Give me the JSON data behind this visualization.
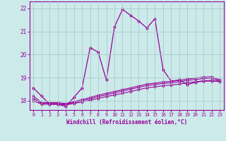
{
  "xlabel": "Windchill (Refroidissement éolien,°C)",
  "background_color": "#cceaea",
  "grid_color": "#aacccc",
  "line_color": "#990099",
  "xlim_min": -0.5,
  "xlim_max": 23.5,
  "ylim_min": 17.6,
  "ylim_max": 22.3,
  "yticks": [
    18,
    19,
    20,
    21,
    22
  ],
  "xticks": [
    0,
    1,
    2,
    3,
    4,
    5,
    6,
    7,
    8,
    9,
    10,
    11,
    12,
    13,
    14,
    15,
    16,
    17,
    18,
    19,
    20,
    21,
    22,
    23
  ],
  "series1_x": [
    0,
    1,
    2,
    3,
    4,
    5,
    6,
    7,
    8,
    9,
    10,
    11,
    12,
    13,
    14,
    15,
    16,
    17,
    18,
    19,
    20,
    21,
    22,
    23
  ],
  "series1_y": [
    18.55,
    18.2,
    17.85,
    17.85,
    17.75,
    18.15,
    18.55,
    20.3,
    20.1,
    18.9,
    21.2,
    21.95,
    21.7,
    21.45,
    21.15,
    21.55,
    19.35,
    18.85,
    18.9,
    18.7,
    18.8,
    18.85,
    18.85,
    18.85
  ],
  "series2_x": [
    0,
    1,
    2,
    3,
    4,
    5,
    6,
    7,
    8,
    9,
    10,
    11,
    12,
    13,
    14,
    15,
    16,
    17,
    18,
    19,
    20,
    21,
    22,
    23
  ],
  "series2_y": [
    18.0,
    17.85,
    17.85,
    17.85,
    17.82,
    17.88,
    17.95,
    18.02,
    18.1,
    18.18,
    18.25,
    18.32,
    18.4,
    18.48,
    18.56,
    18.6,
    18.65,
    18.68,
    18.72,
    18.78,
    18.82,
    18.86,
    18.88,
    18.82
  ],
  "series3_x": [
    0,
    1,
    2,
    3,
    4,
    5,
    6,
    7,
    8,
    9,
    10,
    11,
    12,
    13,
    14,
    15,
    16,
    17,
    18,
    19,
    20,
    21,
    22,
    23
  ],
  "series3_y": [
    18.1,
    17.88,
    17.88,
    17.88,
    17.85,
    17.92,
    18.0,
    18.08,
    18.18,
    18.26,
    18.34,
    18.42,
    18.5,
    18.58,
    18.66,
    18.7,
    18.75,
    18.78,
    18.82,
    18.88,
    18.92,
    18.96,
    18.98,
    18.86
  ],
  "series4_x": [
    0,
    1,
    2,
    3,
    4,
    5,
    6,
    7,
    8,
    9,
    10,
    11,
    12,
    13,
    14,
    15,
    16,
    17,
    18,
    19,
    20,
    21,
    22,
    23
  ],
  "series4_y": [
    18.2,
    17.92,
    17.92,
    17.92,
    17.88,
    17.96,
    18.05,
    18.14,
    18.24,
    18.32,
    18.4,
    18.48,
    18.56,
    18.64,
    18.72,
    18.76,
    18.81,
    18.84,
    18.88,
    18.94,
    18.98,
    19.02,
    19.04,
    18.9
  ]
}
